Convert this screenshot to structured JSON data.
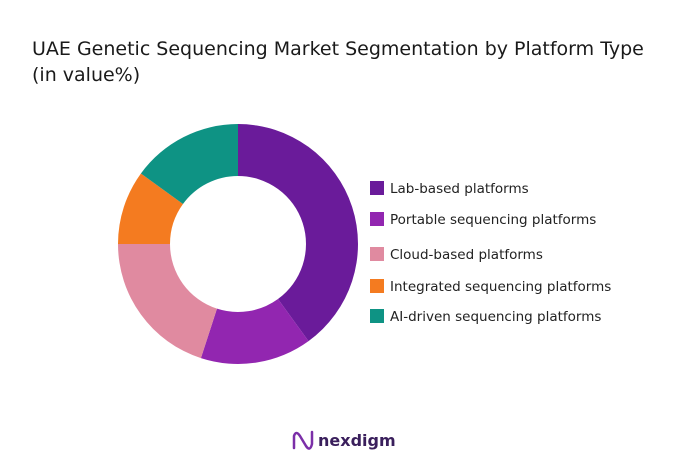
{
  "chart_data": {
    "type": "donut",
    "title": "UAE Genetic Sequencing Market Segmentation by Platform Type",
    "subtitle": "(in value%)",
    "categories": [
      "Lab-based platforms",
      "Portable sequencing platforms",
      "Cloud-based platforms",
      "Integrated sequencing platforms",
      "AI-driven sequencing platforms"
    ],
    "values": [
      40,
      15,
      20,
      10,
      15
    ],
    "colors": [
      "#6a1b9a",
      "#9226b0",
      "#e08aa0",
      "#f47b20",
      "#0e9384"
    ],
    "legend": "right"
  },
  "footer": {
    "brand": "nexdigm"
  }
}
